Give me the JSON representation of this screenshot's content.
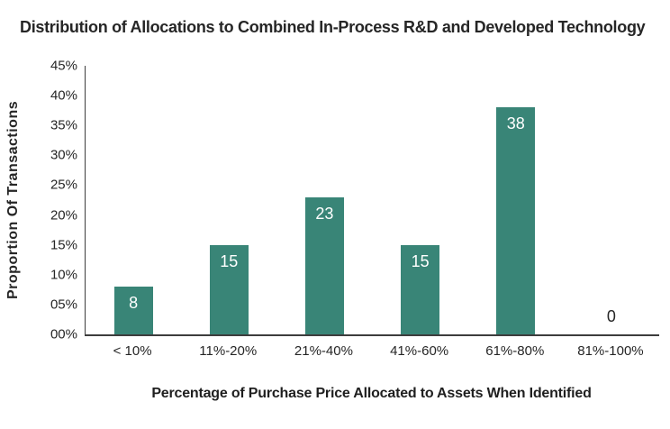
{
  "title": "Distribution of Allocations to Combined In-Process R&D and Developed Technology",
  "chart_data": {
    "type": "bar",
    "title": "Distribution of Allocations to Combined In-Process R&D and Developed Technology",
    "categories": [
      "< 10%",
      "11%-20%",
      "21%-40%",
      "41%-60%",
      "61%-80%",
      "81%-100%"
    ],
    "values": [
      8,
      15,
      23,
      15,
      38,
      0
    ],
    "xlabel": "Percentage of Purchase Price Allocated to Assets When Identified",
    "ylabel": "Proportion Of Transactions",
    "ylim": [
      0,
      45
    ],
    "yticks": [
      "45%",
      "40%",
      "35%",
      "30%",
      "25%",
      "20%",
      "15%",
      "10%",
      "05%",
      "00%"
    ],
    "grid": false,
    "legend_position": "none",
    "colors": {
      "bar": "#398577",
      "bar_label": "#ffffff",
      "zero_label": "#262626",
      "axis_line": "#3d3d3d",
      "text": "#262626"
    }
  }
}
